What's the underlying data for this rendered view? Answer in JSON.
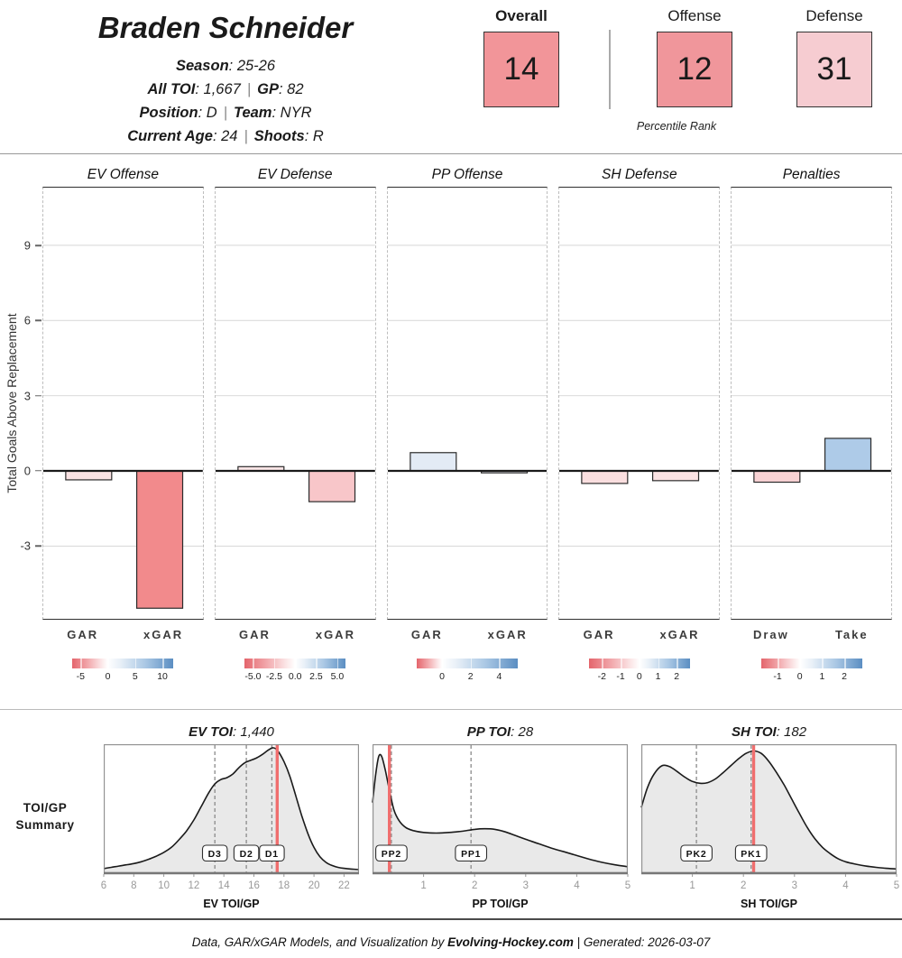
{
  "separators": {
    "colon": ": ",
    "pipe": "|"
  },
  "colors": {
    "accent_red": "#E4656C",
    "accent_blue": "#5B8EC2",
    "red_line": "#F06E6E",
    "density_fill": "#E9E9E9",
    "grid": "#DBDBDB",
    "overall_box": "#F29599",
    "offense_box": "#F0969B",
    "defense_box": "#F6CCD1"
  },
  "header": {
    "name": "Braden Schneider",
    "info_lines": [
      [
        {
          "label": "Season",
          "value": "25-26"
        }
      ],
      [
        {
          "label": "All TOI",
          "value": "1,667"
        },
        {
          "label": "GP",
          "value": "82"
        }
      ],
      [
        {
          "label": "Position",
          "value": "D"
        },
        {
          "label": "Team",
          "value": "NYR"
        }
      ],
      [
        {
          "label": "Current Age",
          "value": "24"
        },
        {
          "label": "Shoots",
          "value": "R"
        }
      ]
    ]
  },
  "percentiles": {
    "caption": "Percentile Rank",
    "items": [
      {
        "label": "Overall",
        "value": "14",
        "color": "#F29599"
      },
      {
        "label": "Offense",
        "value": "12",
        "color": "#F0969B"
      },
      {
        "label": "Defense",
        "value": "31",
        "color": "#F6CCD1"
      }
    ]
  },
  "chart_data": {
    "gar_panels": {
      "type": "bar",
      "ylabel": "Total Goals Above Replacement",
      "ylim": [
        -5.9,
        11.3
      ],
      "yticks": [
        9,
        6,
        3,
        0,
        -3
      ],
      "panels": [
        {
          "title": "EV Offense",
          "categories": [
            "GAR",
            "xGAR"
          ],
          "values": [
            -0.36,
            -5.48
          ],
          "bar_colors": [
            "#FAE2E3",
            "#F28A8C"
          ],
          "legend": {
            "ticks": [
              "-5",
              "0",
              "5",
              "10"
            ],
            "tick_pos": [
              8,
              35,
              62,
              89
            ],
            "white_pos": 35
          }
        },
        {
          "title": "EV Defense",
          "categories": [
            "GAR",
            "xGAR"
          ],
          "values": [
            0.17,
            -1.23
          ],
          "bar_colors": [
            "#FBE6E7",
            "#F8C6C9"
          ],
          "legend": {
            "ticks": [
              "-5.0",
              "-2.5",
              "0.0",
              "2.5",
              "5.0"
            ],
            "tick_pos": [
              8.3,
              29.2,
              50,
              70.8,
              91.7
            ],
            "white_pos": 50
          }
        },
        {
          "title": "PP Offense",
          "categories": [
            "GAR",
            "xGAR"
          ],
          "values": [
            0.73,
            -0.08
          ],
          "bar_colors": [
            "#E3EBF5",
            "#EFF3F8"
          ],
          "legend": {
            "ticks": [
              "0",
              "2",
              "4"
            ],
            "tick_pos": [
              25,
              53.3,
              81.6
            ],
            "white_pos": 25
          }
        },
        {
          "title": "SH Defense",
          "categories": [
            "GAR",
            "xGAR"
          ],
          "values": [
            -0.5,
            -0.39
          ],
          "bar_colors": [
            "#FADEDF",
            "#FBE2E3"
          ],
          "legend": {
            "ticks": [
              "-2",
              "-1",
              "0",
              "1",
              "2"
            ],
            "tick_pos": [
              13,
              31.5,
              50,
              68.5,
              87
            ],
            "white_pos": 50
          }
        },
        {
          "title": "Penalties",
          "categories": [
            "Draw",
            "Take"
          ],
          "values": [
            -0.45,
            1.3
          ],
          "bar_colors": [
            "#F8D2D4",
            "#AECBE8"
          ],
          "legend": {
            "ticks": [
              "-1",
              "0",
              "1",
              "2"
            ],
            "tick_pos": [
              16.5,
              38.5,
              60.6,
              82.6
            ],
            "white_pos": 38.5
          }
        }
      ]
    },
    "toi_densities": {
      "type": "area",
      "row_label_line1": "TOI/GP",
      "row_label_line2": "Summary",
      "plots": [
        {
          "title_label": "EV TOI",
          "title_value": "1,440",
          "xlabel": "EV TOI/GP",
          "xlim": [
            6,
            23
          ],
          "xticks": [
            6,
            8,
            10,
            12,
            14,
            16,
            18,
            20,
            22
          ],
          "red_line": 17.55,
          "markers": [
            {
              "label": "D3",
              "x": 13.4
            },
            {
              "label": "D2",
              "x": 15.5
            },
            {
              "label": "D1",
              "x": 17.2
            }
          ],
          "curve": [
            [
              6,
              0.03
            ],
            [
              6.5,
              0.04
            ],
            [
              7,
              0.05
            ],
            [
              7.5,
              0.06
            ],
            [
              8,
              0.07
            ],
            [
              8.5,
              0.085
            ],
            [
              9,
              0.105
            ],
            [
              9.5,
              0.13
            ],
            [
              10,
              0.16
            ],
            [
              10.5,
              0.2
            ],
            [
              11,
              0.26
            ],
            [
              11.5,
              0.33
            ],
            [
              12,
              0.42
            ],
            [
              12.5,
              0.53
            ],
            [
              13,
              0.64
            ],
            [
              13.4,
              0.71
            ],
            [
              13.8,
              0.745
            ],
            [
              14.2,
              0.76
            ],
            [
              14.6,
              0.79
            ],
            [
              15,
              0.84
            ],
            [
              15.4,
              0.88
            ],
            [
              15.8,
              0.9
            ],
            [
              16.2,
              0.92
            ],
            [
              16.6,
              0.95
            ],
            [
              17,
              0.985
            ],
            [
              17.3,
              1.0
            ],
            [
              17.6,
              0.975
            ],
            [
              18,
              0.89
            ],
            [
              18.4,
              0.77
            ],
            [
              18.8,
              0.61
            ],
            [
              19.2,
              0.45
            ],
            [
              19.6,
              0.31
            ],
            [
              20,
              0.2
            ],
            [
              20.4,
              0.125
            ],
            [
              20.8,
              0.08
            ],
            [
              21.2,
              0.055
            ],
            [
              21.6,
              0.04
            ],
            [
              22,
              0.032
            ],
            [
              22.5,
              0.026
            ],
            [
              23,
              0.022
            ]
          ]
        },
        {
          "title_label": "PP TOI",
          "title_value": "28",
          "xlabel": "PP TOI/GP",
          "xlim": [
            0,
            5
          ],
          "xticks": [
            1,
            2,
            3,
            4,
            5
          ],
          "red_line": 0.33,
          "markers": [
            {
              "label": "PP2",
              "x": 0.37
            },
            {
              "label": "PP1",
              "x": 1.93
            }
          ],
          "curve": [
            [
              0,
              0.56
            ],
            [
              0.06,
              0.78
            ],
            [
              0.12,
              0.93
            ],
            [
              0.18,
              0.93
            ],
            [
              0.25,
              0.82
            ],
            [
              0.33,
              0.66
            ],
            [
              0.42,
              0.5
            ],
            [
              0.52,
              0.415
            ],
            [
              0.65,
              0.36
            ],
            [
              0.8,
              0.335
            ],
            [
              1.0,
              0.32
            ],
            [
              1.25,
              0.315
            ],
            [
              1.5,
              0.32
            ],
            [
              1.75,
              0.33
            ],
            [
              2.0,
              0.345
            ],
            [
              2.2,
              0.35
            ],
            [
              2.4,
              0.345
            ],
            [
              2.6,
              0.325
            ],
            [
              2.8,
              0.295
            ],
            [
              3.0,
              0.265
            ],
            [
              3.25,
              0.23
            ],
            [
              3.5,
              0.195
            ],
            [
              3.75,
              0.165
            ],
            [
              4.0,
              0.135
            ],
            [
              4.25,
              0.105
            ],
            [
              4.5,
              0.08
            ],
            [
              4.75,
              0.06
            ],
            [
              5,
              0.045
            ]
          ]
        },
        {
          "title_label": "SH TOI",
          "title_value": "182",
          "xlabel": "SH TOI/GP",
          "xlim": [
            0,
            5
          ],
          "xticks": [
            1,
            2,
            3,
            4,
            5
          ],
          "red_line": 2.2,
          "markers": [
            {
              "label": "PK2",
              "x": 1.08
            },
            {
              "label": "PK1",
              "x": 2.15
            }
          ],
          "curve": [
            [
              0,
              0.52
            ],
            [
              0.12,
              0.68
            ],
            [
              0.25,
              0.79
            ],
            [
              0.4,
              0.855
            ],
            [
              0.55,
              0.85
            ],
            [
              0.7,
              0.81
            ],
            [
              0.85,
              0.765
            ],
            [
              1.0,
              0.73
            ],
            [
              1.15,
              0.715
            ],
            [
              1.3,
              0.72
            ],
            [
              1.45,
              0.75
            ],
            [
              1.6,
              0.8
            ],
            [
              1.75,
              0.855
            ],
            [
              1.9,
              0.91
            ],
            [
              2.05,
              0.955
            ],
            [
              2.2,
              0.975
            ],
            [
              2.35,
              0.955
            ],
            [
              2.5,
              0.89
            ],
            [
              2.65,
              0.8
            ],
            [
              2.8,
              0.7
            ],
            [
              2.95,
              0.585
            ],
            [
              3.1,
              0.47
            ],
            [
              3.25,
              0.36
            ],
            [
              3.4,
              0.27
            ],
            [
              3.55,
              0.2
            ],
            [
              3.7,
              0.15
            ],
            [
              3.85,
              0.11
            ],
            [
              4.0,
              0.085
            ],
            [
              4.2,
              0.065
            ],
            [
              4.4,
              0.05
            ],
            [
              4.6,
              0.04
            ],
            [
              4.8,
              0.032
            ],
            [
              5,
              0.027
            ]
          ]
        }
      ]
    }
  },
  "footer": {
    "prefix": "Data, GAR/xGAR Models, and Visualization by ",
    "site": "Evolving-Hockey.com",
    "separator": " | ",
    "generated": "Generated: 2026-03-07"
  }
}
